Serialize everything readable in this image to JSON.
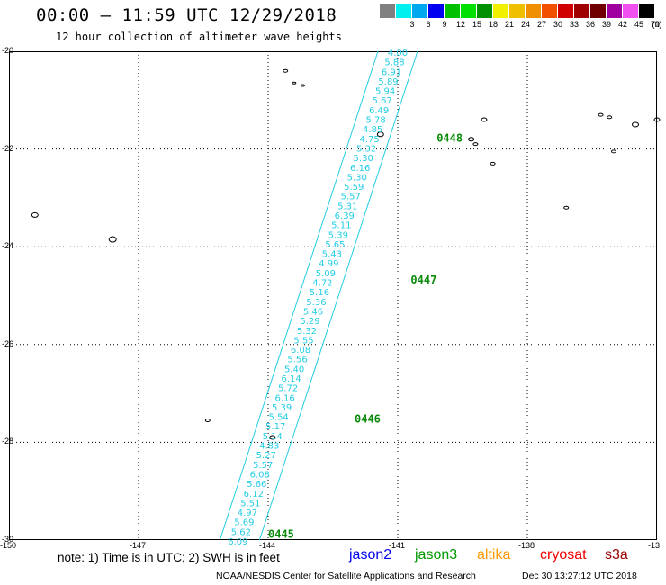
{
  "header": {
    "title": "00:00 – 11:59 UTC 12/29/2018",
    "subtitle": "12 hour collection of altimeter wave heights"
  },
  "legend": {
    "unit": "(ft)",
    "items": [
      {
        "label": "",
        "color": "#808080"
      },
      {
        "label": "3",
        "color": "#00f0f0"
      },
      {
        "label": "6",
        "color": "#00a8f0"
      },
      {
        "label": "9",
        "color": "#0000f0"
      },
      {
        "label": "12",
        "color": "#00c000"
      },
      {
        "label": "15",
        "color": "#00e000"
      },
      {
        "label": "18",
        "color": "#009000"
      },
      {
        "label": "21",
        "color": "#f0f000"
      },
      {
        "label": "24",
        "color": "#f0c000"
      },
      {
        "label": "27",
        "color": "#f09000"
      },
      {
        "label": "30",
        "color": "#f05000"
      },
      {
        "label": "33",
        "color": "#d00000"
      },
      {
        "label": "36",
        "color": "#a00000"
      },
      {
        "label": "39",
        "color": "#700000"
      },
      {
        "label": "42",
        "color": "#a000a0"
      },
      {
        "label": "45",
        "color": "#f050f0"
      },
      {
        "label": "70",
        "color": "#000000"
      }
    ]
  },
  "map": {
    "lon_range": [
      -150,
      -135
    ],
    "lat_range": [
      -30,
      -20
    ],
    "x_ticks": [
      "-150",
      "-147",
      "-144",
      "-141",
      "-138",
      "-13"
    ],
    "y_ticks": [
      "-20",
      "-22",
      "-24",
      "-26",
      "-28",
      "-30"
    ],
    "wave_color": "#22cde4",
    "pass_color": "#0a8a0a",
    "track": {
      "start": {
        "lon": -141.0,
        "lat": -20.0
      },
      "end": {
        "lon": -144.7,
        "lat": -30.0
      },
      "wave_heights_ft": [
        "4.00",
        "5.88",
        "6.91",
        "5.89",
        "5.94",
        "5.67",
        "6.49",
        "5.78",
        "4.85",
        "4.75",
        "5.32",
        "5.30",
        "6.16",
        "5.30",
        "5.59",
        "5.57",
        "5.31",
        "6.39",
        "5.11",
        "5.39",
        "5.65",
        "5.43",
        "4.99",
        "5.09",
        "4.72",
        "5.16",
        "5.36",
        "5.46",
        "5.29",
        "5.32",
        "5.55",
        "6.08",
        "5.56",
        "5.40",
        "6.14",
        "5.72",
        "6.16",
        "5.39",
        "5.54",
        "5.17",
        "5.14",
        "4.83",
        "5.27",
        "5.57",
        "6.08",
        "5.66",
        "6.12",
        "5.51",
        "4.97",
        "5.69",
        "5.62",
        "6.09"
      ]
    },
    "passes": [
      {
        "label": "0448",
        "lon": -140.1,
        "lat": -21.85
      },
      {
        "label": "0447",
        "lon": -140.7,
        "lat": -24.75
      },
      {
        "label": "0446",
        "lon": -142.0,
        "lat": -27.6
      },
      {
        "label": "0445",
        "lon": -144.0,
        "lat": -29.95
      }
    ]
  },
  "footer": {
    "note": "note: 1) Time is in UTC; 2) SWH is in feet",
    "satellites": [
      {
        "name": "jason2",
        "color": "#0000ee"
      },
      {
        "name": "jason3",
        "color": "#009900"
      },
      {
        "name": "altika",
        "color": "#ff9900"
      },
      {
        "name": "cryosat",
        "color": "#ee0000"
      },
      {
        "name": "s3a",
        "color": "#990000"
      }
    ],
    "credit": "NOAA/NESDIS Center for Satellite Applications and Research",
    "timestamp": "Dec 30 13:27:12 UTC 2018"
  }
}
